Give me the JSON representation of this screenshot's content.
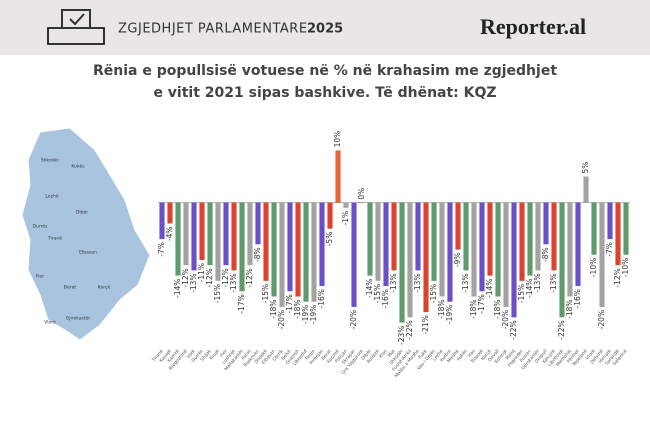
{
  "header": {
    "title": "ZGJEDHJET PARLAMENTARE",
    "year": "2025",
    "logo": "Reporter.al"
  },
  "map": {
    "labels": [
      "Shkodër",
      "Kukës",
      "Lezhë",
      "Dibër",
      "Durrës",
      "Tiranë",
      "Elbasan",
      "Fier",
      "Berat",
      "Korçë",
      "Vlorë",
      "Gjirokastër"
    ]
  },
  "chart_data": {
    "type": "bar",
    "title": "Rënia e popullsisë votuese në % në krahasim me zgjedhjet",
    "subtitle": "e vitit 2021 sipas bashkive. Të dhënat: KQZ",
    "categories": [
      "Tiranë",
      "Kavajë",
      "Kamzë",
      "Rrogozhinë",
      "Vorë",
      "Durrës",
      "Shijak",
      "Krujë",
      "Fier",
      "Lushnje",
      "Mallakastër",
      "Patos",
      "Roskovec",
      "Divjakë",
      "Elbasan",
      "Cërrik",
      "Belsh",
      "Gramsh",
      "Librazhd",
      "Peqin",
      "Prrenjas",
      "Berat",
      "Kuçovë",
      "Poliçan",
      "Skrapar",
      "Ura Vajgurore",
      "Dibër",
      "Bulqizë",
      "Klos",
      "Mat",
      "Shkodër",
      "Fushë-Arrëz",
      "Malësi e Madhe",
      "Pukë",
      "Vau i Dejës",
      "Lezhë",
      "Kurbin",
      "Mirditë",
      "Kukës",
      "Has",
      "Tropojë",
      "Korçë",
      "Devoll",
      "Kolonjë",
      "Maliq",
      "Pogradec",
      "Pustec",
      "Gjirokastër",
      "Dropull",
      "Këlcyrë",
      "Libohovë",
      "Memaliaj",
      "Përmet",
      "Tepelenë",
      "Vlorë",
      "Delvinë",
      "Himarë",
      "Sarandë",
      "Selenicë"
    ],
    "values": [
      -7,
      -4,
      -14,
      -12,
      -13,
      -11,
      -12,
      -15,
      -12,
      -13,
      -17,
      -12,
      -8,
      -15,
      -18,
      -20,
      -17,
      -18,
      -19,
      -19,
      -16,
      -5,
      10,
      -1,
      -20,
      0,
      -14,
      -15,
      -16,
      -13,
      -23,
      -22,
      -13,
      -21,
      -15,
      -18,
      -19,
      -9,
      -13,
      -18,
      -17,
      -14,
      -18,
      -20,
      -22,
      -15,
      -14,
      -13,
      -8,
      -13,
      -22,
      -18,
      -16,
      5,
      -10,
      -20,
      -7,
      -12,
      -10
    ],
    "value_labels": [
      "-7%",
      "-4%",
      "-14%",
      "-12%",
      "-13%",
      "-11%",
      "-12%",
      "-15%",
      "-12%",
      "-13%",
      "-17%",
      "-12%",
      "-8%",
      "-15%",
      "-18%",
      "-20%",
      "-17%",
      "-18%",
      "-19%",
      "-19%",
      "-16%",
      "-5%",
      "10%",
      "-1%",
      "-20%",
      "0%",
      "-14%",
      "-15%",
      "-16%",
      "-13%",
      "-23%",
      "-22%",
      "-13%",
      "-21%",
      "-15%",
      "-18%",
      "-19%",
      "-9%",
      "-13%",
      "-18%",
      "-17%",
      "-14%",
      "-18%",
      "-20%",
      "-22%",
      "-15%",
      "-14%",
      "-13%",
      "-8%",
      "-13%",
      "-22%",
      "-18%",
      "-16%",
      "5%",
      "-10%",
      "-20%",
      "-7%",
      "-12%",
      "-10%"
    ],
    "palette": [
      "#6a4fc8",
      "#d9432f",
      "#5e9a6c",
      "#a3a3a3"
    ],
    "positive_colors": [
      "#e3663a",
      "#a3a3a3"
    ],
    "ylim": [
      -25,
      12
    ]
  }
}
